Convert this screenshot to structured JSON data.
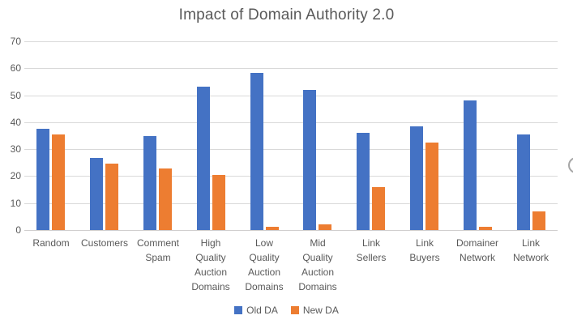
{
  "chart_data": {
    "type": "bar",
    "title": "Impact of Domain Authority 2.0",
    "categories": [
      "Random",
      "Customers",
      "Comment Spam",
      "High Quality Auction Domains",
      "Low Quality Auction Domains",
      "Mid Quality Auction Domains",
      "Link Sellers",
      "Link Buyers",
      "Domainer Network",
      "Link Network"
    ],
    "category_label_lines": [
      [
        "Random"
      ],
      [
        "Customers"
      ],
      [
        "Comment",
        "Spam"
      ],
      [
        "High",
        "Quality",
        "Auction",
        "Domains"
      ],
      [
        "Low",
        "Quality",
        "Auction",
        "Domains"
      ],
      [
        "Mid",
        "Quality",
        "Auction",
        "Domains"
      ],
      [
        "Link",
        "Sellers"
      ],
      [
        "Link",
        "Buyers"
      ],
      [
        "Domainer",
        "Network"
      ],
      [
        "Link",
        "Network"
      ]
    ],
    "series": [
      {
        "name": "Old DA",
        "color": "#4472C4",
        "values": [
          37.5,
          26.7,
          34.7,
          53.3,
          58.3,
          52.0,
          36.0,
          38.5,
          48.0,
          35.5
        ]
      },
      {
        "name": "New DA",
        "color": "#ED7D31",
        "values": [
          35.5,
          24.5,
          22.7,
          20.5,
          1.3,
          2.2,
          16.0,
          32.5,
          1.2,
          7.0
        ]
      }
    ],
    "xlabel": "",
    "ylabel": "",
    "ylim": [
      0,
      70
    ],
    "yticks": [
      0,
      10,
      20,
      30,
      40,
      50,
      60,
      70
    ],
    "grid": true,
    "legend_position": "bottom"
  },
  "colors": {
    "title_text": "#595959",
    "axis_text": "#595959",
    "gridline": "#D9D9D9",
    "background": "#FFFFFF",
    "series_old_da": "#4472C4",
    "series_new_da": "#ED7D31",
    "edge_button_border": "#A6A6A6"
  },
  "misc": {
    "edge_button": "partially-visible-circle-button"
  }
}
